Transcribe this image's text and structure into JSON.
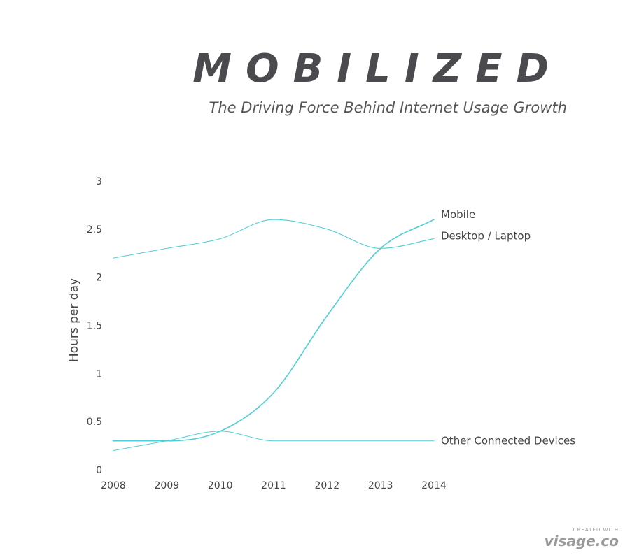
{
  "header": {
    "title": "MOBILIZED",
    "subtitle": "The Driving Force Behind Internet Usage Growth"
  },
  "chart_data": {
    "type": "line",
    "x": [
      2008,
      2009,
      2010,
      2011,
      2012,
      2013,
      2014
    ],
    "x_tick_labels": [
      "2008",
      "2009",
      "2010",
      "2011",
      "2012",
      "2013",
      "2014"
    ],
    "ylabel": "Hours per day",
    "ylim": [
      0,
      3
    ],
    "y_ticks": [
      0,
      0.5,
      1,
      1.5,
      2,
      2.5,
      3
    ],
    "y_tick_labels": [
      "0",
      "0.5",
      "1",
      "1.5",
      "2",
      "2.5",
      "3"
    ],
    "grid": false,
    "legend": "end-of-line labels",
    "line_color": "#4ecfd6",
    "series": [
      {
        "name": "Mobile",
        "values": [
          0.3,
          0.3,
          0.4,
          0.8,
          1.6,
          2.3,
          2.6
        ]
      },
      {
        "name": "Desktop / Laptop",
        "values": [
          2.2,
          2.3,
          2.4,
          2.6,
          2.5,
          2.3,
          2.4
        ]
      },
      {
        "name": "Other Connected Devices",
        "values": [
          0.2,
          0.3,
          0.4,
          0.3,
          0.3,
          0.3,
          0.3
        ]
      }
    ]
  },
  "credit": {
    "top": "CREATED WITH",
    "brand": "visage.co"
  }
}
